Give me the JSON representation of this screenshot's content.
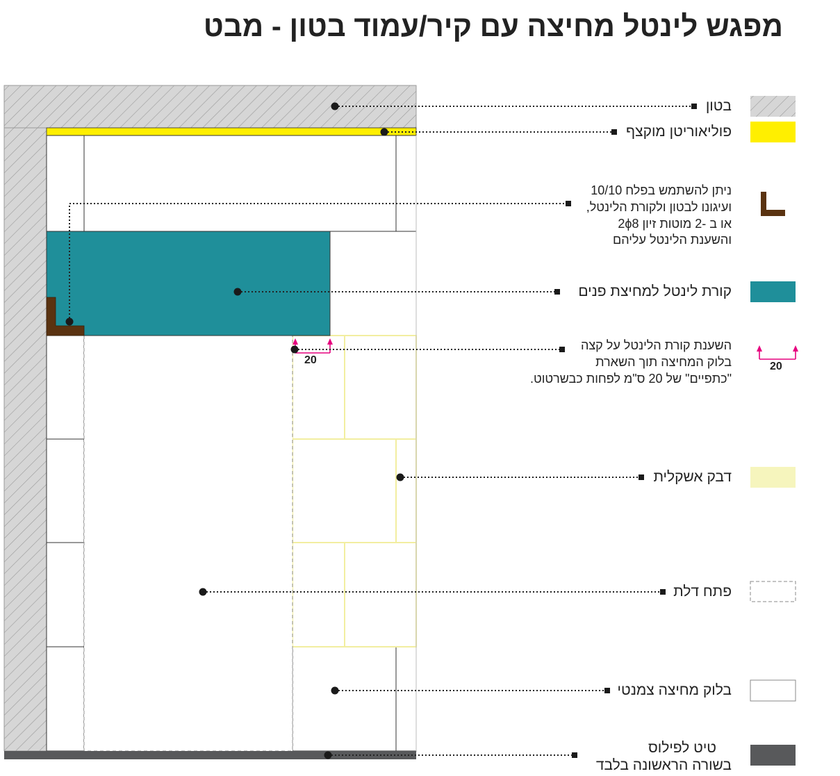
{
  "title": "מפגש לינטל מחיצה עם קיר/עמוד בטון - מבט",
  "colors": {
    "concrete": "#d6d6d6",
    "polyurethane": "#ffef00",
    "lintel_beam": "#1f8f9a",
    "angle_steel": "#5a3311",
    "tile_adhesive": "#f6f5bd",
    "floor_mortar": "#58595b",
    "dimension": "#e6007e"
  },
  "legend": {
    "concrete": "בטון",
    "polyurethane": "פוליאוריטן מוקצף",
    "angle_steel_lines": [
      "ניתן להשתמש בפלח 10/10",
      "ועיגונו לבטון ולקורת הלינטל,",
      "או ב -2 מוטות זיון 2ϕ8",
      "והשענת הלינטל עליהם"
    ],
    "lintel_beam": "קורת לינטל למחיצת פנים",
    "bearing_lines": [
      "השענת קורת הלינטל על קצה",
      "בלוק המחיצה תוך השארת",
      "\"כתפיים\" של 20 ס\"מ לפחות כבשרטוט."
    ],
    "tile_adhesive": "דבק אשקלית",
    "door_opening": "פתח דלת",
    "partition_block": "בלוק מחיצה צמנטי",
    "floor_mortar_lines": [
      "טיט לפילוס",
      "בשורה הראשונה בלבד"
    ]
  },
  "dimension_value": "20",
  "legend_dimension_value": "20"
}
